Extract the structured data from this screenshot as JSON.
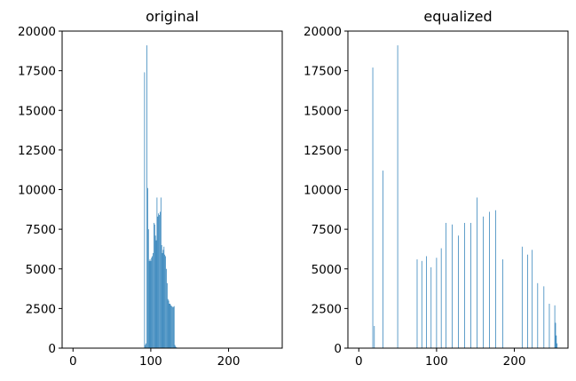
{
  "chart_data": [
    {
      "type": "bar",
      "title": "original",
      "xlabel": "",
      "ylabel": "",
      "xlim": [
        -14,
        269
      ],
      "ylim": [
        0,
        20000
      ],
      "xticks": [
        0,
        100,
        200
      ],
      "yticks": [
        0,
        2500,
        5000,
        7500,
        10000,
        12500,
        15000,
        17500,
        20000
      ],
      "grid": false,
      "color": "#1f77b4",
      "x": [
        92,
        93,
        94,
        95,
        96,
        97,
        98,
        99,
        100,
        101,
        102,
        103,
        104,
        105,
        106,
        107,
        108,
        109,
        110,
        111,
        112,
        113,
        114,
        115,
        116,
        117,
        118,
        119,
        120,
        121,
        122,
        123,
        124,
        125,
        126,
        127,
        128,
        129,
        130,
        131,
        132,
        133,
        134
      ],
      "values": [
        17400,
        200,
        300,
        19100,
        10100,
        7500,
        5500,
        5600,
        5500,
        5700,
        5800,
        6000,
        7900,
        7800,
        7100,
        6800,
        9500,
        8300,
        8500,
        8400,
        8600,
        9500,
        6500,
        6000,
        6200,
        6400,
        5900,
        5800,
        5000,
        4100,
        3100,
        3000,
        2800,
        2800,
        2700,
        2650,
        2600,
        2600,
        2650,
        200,
        100,
        50,
        30
      ]
    },
    {
      "type": "bar",
      "title": "equalized",
      "xlabel": "",
      "ylabel": "",
      "xlim": [
        -14,
        269
      ],
      "ylim": [
        0,
        20000
      ],
      "xticks": [
        0,
        100,
        200
      ],
      "yticks": [
        0,
        2500,
        5000,
        7500,
        10000,
        12500,
        15000,
        17500,
        20000
      ],
      "grid": false,
      "color": "#1f77b4",
      "x": [
        18,
        20,
        31,
        50,
        75,
        81,
        87,
        93,
        100,
        106,
        112,
        120,
        128,
        136,
        144,
        152,
        160,
        168,
        176,
        185,
        210,
        217,
        223,
        230,
        238,
        245,
        252,
        253,
        254,
        255
      ],
      "values": [
        17700,
        1400,
        11200,
        19100,
        5600,
        5500,
        5800,
        5100,
        5700,
        6300,
        7900,
        7800,
        7100,
        7900,
        7900,
        9500,
        8300,
        8600,
        8700,
        5600,
        6400,
        5900,
        6200,
        4100,
        3900,
        2800,
        2700,
        1600,
        800,
        300
      ]
    }
  ]
}
